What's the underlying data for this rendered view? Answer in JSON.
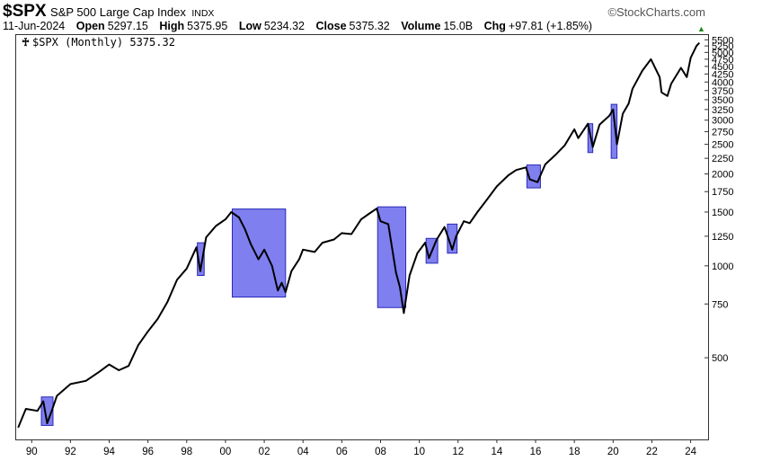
{
  "header": {
    "ticker": "$SPX",
    "name": "S&P 500 Large Cap Index",
    "exchange": "INDX",
    "brand": "©StockCharts.com",
    "date": "11-Jun-2024",
    "open_label": "Open",
    "open": "5297.15",
    "high_label": "High",
    "high": "5375.95",
    "low_label": "Low",
    "low": "5234.32",
    "close_label": "Close",
    "close": "5375.32",
    "volume_label": "Volume",
    "volume": "15.0B",
    "chg_label": "Chg",
    "chg": "+97.81 (+1.85%)",
    "up_arrow": "▲"
  },
  "legend": {
    "icon": "&#9840;",
    "label": "$SPX (Monthly) 5375.32"
  },
  "chart_data": {
    "type": "line",
    "yscale": "log",
    "ylim": [
      270,
      5700
    ],
    "xlim": [
      1989.2,
      2024.9
    ],
    "x_ticks": [
      {
        "v": 1990,
        "label": "90"
      },
      {
        "v": 1992,
        "label": "92"
      },
      {
        "v": 1994,
        "label": "94"
      },
      {
        "v": 1996,
        "label": "96"
      },
      {
        "v": 1998,
        "label": "98"
      },
      {
        "v": 2000,
        "label": "00"
      },
      {
        "v": 2002,
        "label": "02"
      },
      {
        "v": 2004,
        "label": "04"
      },
      {
        "v": 2006,
        "label": "06"
      },
      {
        "v": 2008,
        "label": "08"
      },
      {
        "v": 2010,
        "label": "10"
      },
      {
        "v": 2012,
        "label": "12"
      },
      {
        "v": 2014,
        "label": "14"
      },
      {
        "v": 2016,
        "label": "16"
      },
      {
        "v": 2018,
        "label": "18"
      },
      {
        "v": 2020,
        "label": "20"
      },
      {
        "v": 2022,
        "label": "22"
      },
      {
        "v": 2024,
        "label": "24"
      }
    ],
    "y_ticks": [
      {
        "v": 500,
        "label": "500"
      },
      {
        "v": 750,
        "label": "750"
      },
      {
        "v": 1000,
        "label": "1000"
      },
      {
        "v": 1250,
        "label": "1250"
      },
      {
        "v": 1500,
        "label": "1500"
      },
      {
        "v": 1750,
        "label": "1750"
      },
      {
        "v": 2000,
        "label": "2000"
      },
      {
        "v": 2250,
        "label": "2250"
      },
      {
        "v": 2500,
        "label": "2500"
      },
      {
        "v": 2750,
        "label": "2750"
      },
      {
        "v": 3000,
        "label": "3000"
      },
      {
        "v": 3250,
        "label": "3250"
      },
      {
        "v": 3500,
        "label": "3500"
      },
      {
        "v": 3750,
        "label": "3750"
      },
      {
        "v": 4000,
        "label": "4000"
      },
      {
        "v": 4250,
        "label": "4250"
      },
      {
        "v": 4500,
        "label": "4500"
      },
      {
        "v": 4750,
        "label": "4750"
      },
      {
        "v": 5000,
        "label": "5000"
      },
      {
        "v": 5250,
        "label": "5250"
      },
      {
        "v": 5500,
        "label": "5500"
      }
    ],
    "series": [
      {
        "points": [
          [
            1989.3,
            295
          ],
          [
            1989.7,
            340
          ],
          [
            1990.3,
            335
          ],
          [
            1990.6,
            360
          ],
          [
            1990.8,
            305
          ],
          [
            1991.0,
            330
          ],
          [
            1991.3,
            375
          ],
          [
            1992.0,
            410
          ],
          [
            1992.8,
            420
          ],
          [
            1993.5,
            450
          ],
          [
            1994.0,
            475
          ],
          [
            1994.5,
            455
          ],
          [
            1995.0,
            470
          ],
          [
            1995.5,
            550
          ],
          [
            1996.0,
            610
          ],
          [
            1996.5,
            670
          ],
          [
            1997.0,
            760
          ],
          [
            1997.5,
            900
          ],
          [
            1998.0,
            980
          ],
          [
            1998.5,
            1150
          ],
          [
            1998.7,
            960
          ],
          [
            1999.0,
            1240
          ],
          [
            1999.5,
            1350
          ],
          [
            2000.0,
            1420
          ],
          [
            2000.3,
            1500
          ],
          [
            2000.7,
            1440
          ],
          [
            2001.0,
            1320
          ],
          [
            2001.3,
            1180
          ],
          [
            2001.7,
            1050
          ],
          [
            2002.0,
            1130
          ],
          [
            2002.4,
            1000
          ],
          [
            2002.7,
            830
          ],
          [
            2002.9,
            880
          ],
          [
            2003.1,
            820
          ],
          [
            2003.4,
            960
          ],
          [
            2003.8,
            1050
          ],
          [
            2004.0,
            1130
          ],
          [
            2004.6,
            1110
          ],
          [
            2005.0,
            1190
          ],
          [
            2005.6,
            1220
          ],
          [
            2006.0,
            1280
          ],
          [
            2006.5,
            1270
          ],
          [
            2007.0,
            1420
          ],
          [
            2007.4,
            1480
          ],
          [
            2007.8,
            1540
          ],
          [
            2008.0,
            1400
          ],
          [
            2008.4,
            1370
          ],
          [
            2008.8,
            950
          ],
          [
            2009.0,
            850
          ],
          [
            2009.2,
            700
          ],
          [
            2009.5,
            930
          ],
          [
            2009.9,
            1100
          ],
          [
            2010.3,
            1190
          ],
          [
            2010.5,
            1060
          ],
          [
            2010.9,
            1220
          ],
          [
            2011.3,
            1340
          ],
          [
            2011.7,
            1130
          ],
          [
            2011.9,
            1250
          ],
          [
            2012.3,
            1400
          ],
          [
            2012.6,
            1380
          ],
          [
            2013.0,
            1500
          ],
          [
            2013.5,
            1650
          ],
          [
            2014.0,
            1820
          ],
          [
            2014.6,
            1980
          ],
          [
            2015.0,
            2060
          ],
          [
            2015.5,
            2100
          ],
          [
            2015.7,
            1920
          ],
          [
            2016.1,
            1880
          ],
          [
            2016.5,
            2150
          ],
          [
            2017.0,
            2300
          ],
          [
            2017.5,
            2480
          ],
          [
            2018.0,
            2800
          ],
          [
            2018.2,
            2620
          ],
          [
            2018.7,
            2920
          ],
          [
            2018.95,
            2450
          ],
          [
            2019.3,
            2900
          ],
          [
            2019.8,
            3100
          ],
          [
            2020.0,
            3250
          ],
          [
            2020.2,
            2500
          ],
          [
            2020.5,
            3150
          ],
          [
            2020.8,
            3400
          ],
          [
            2021.0,
            3800
          ],
          [
            2021.5,
            4350
          ],
          [
            2021.95,
            4750
          ],
          [
            2022.4,
            4150
          ],
          [
            2022.5,
            3700
          ],
          [
            2022.8,
            3600
          ],
          [
            2023.0,
            3950
          ],
          [
            2023.5,
            4450
          ],
          [
            2023.8,
            4150
          ],
          [
            2024.0,
            4800
          ],
          [
            2024.3,
            5250
          ],
          [
            2024.45,
            5375
          ]
        ]
      }
    ],
    "highlights": [
      {
        "x0": 1990.5,
        "x1": 1991.1,
        "y0": 300,
        "y1": 372
      },
      {
        "x0": 1998.55,
        "x1": 1998.9,
        "y0": 930,
        "y1": 1190
      },
      {
        "x0": 2000.35,
        "x1": 2003.1,
        "y0": 790,
        "y1": 1535
      },
      {
        "x0": 2007.85,
        "x1": 2009.3,
        "y0": 730,
        "y1": 1560
      },
      {
        "x0": 2010.35,
        "x1": 2010.95,
        "y0": 1020,
        "y1": 1230
      },
      {
        "x0": 2011.45,
        "x1": 2011.95,
        "y0": 1100,
        "y1": 1370
      },
      {
        "x0": 2015.55,
        "x1": 2016.25,
        "y0": 1800,
        "y1": 2140
      },
      {
        "x0": 2018.7,
        "x1": 2018.95,
        "y0": 2350,
        "y1": 2920
      },
      {
        "x0": 2019.9,
        "x1": 2020.2,
        "y0": 2250,
        "y1": 3380
      }
    ],
    "colors": {
      "line": "#000000",
      "highlight_fill": "#7f7ff0",
      "highlight_stroke": "#2a2ab8"
    }
  }
}
